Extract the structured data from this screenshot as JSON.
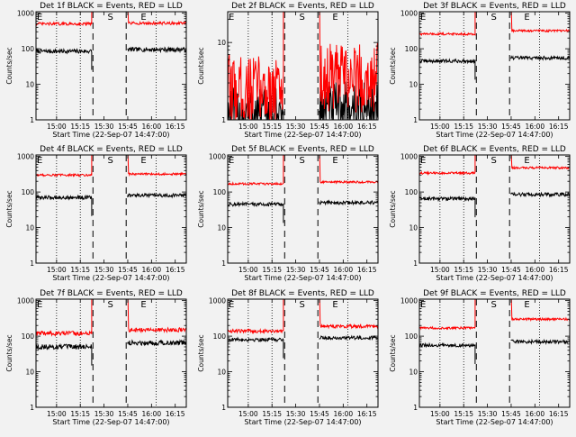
{
  "colors": {
    "background": "#f2f2f2",
    "events": "#000000",
    "lld": "#ff0000",
    "axes": "#000000"
  },
  "chart_data": [
    {
      "type": "line",
      "title": "Det 1f BLACK = Events, RED = LLD",
      "xlabel": "Start Time (22-Sep-07 14:47:00)",
      "ylabel": "Counts/sec",
      "x_ticks": [
        "15:00",
        "15:15",
        "15:30",
        "15:45",
        "16:00",
        "16:15"
      ],
      "y_ticks": [
        "1",
        "10",
        "100",
        "1000"
      ],
      "ylim": [
        1,
        1100
      ],
      "y_scale": "log",
      "xlim_minutes": [
        0,
        95
      ],
      "saa_start_marker": "S",
      "saa_end_marker": "E",
      "start_marker_min": 47,
      "end_marker_min": 68,
      "dashed_lines_min": [
        36,
        57
      ],
      "dotted_lines_min": [
        13,
        28,
        76
      ],
      "series": [
        {
          "name": "Events",
          "color": "black",
          "level_before": 85,
          "level_after": 95,
          "noise": 0.06
        },
        {
          "name": "LLD",
          "color": "red",
          "level_before": 500,
          "level_after": 520,
          "noise": 0.04
        }
      ]
    },
    {
      "type": "line",
      "title": "Det 2f BLACK = Events, RED = LLD",
      "xlabel": "Start Time (22-Sep-07 14:47:00)",
      "ylabel": "Counts/sec",
      "x_ticks": [
        "15:00",
        "15:15",
        "15:30",
        "15:45",
        "16:00",
        "16:15"
      ],
      "y_ticks": [
        "1",
        "10"
      ],
      "ylim": [
        1,
        25
      ],
      "y_scale": "log",
      "xlim_minutes": [
        0,
        95
      ],
      "saa_start_marker": "S",
      "saa_end_marker": "E",
      "start_marker_min": 47,
      "end_marker_min": 68,
      "dashed_lines_min": [
        36,
        57
      ],
      "dotted_lines_min": [
        13,
        28,
        76
      ],
      "series": [
        {
          "name": "Events",
          "color": "black",
          "level_before": 1.2,
          "level_after": 1.4,
          "noise": 0.35
        },
        {
          "name": "LLD",
          "color": "red",
          "level_before": 2.5,
          "level_after": 3.5,
          "noise": 0.45
        }
      ]
    },
    {
      "type": "line",
      "title": "Det 3f BLACK = Events, RED = LLD",
      "xlabel": "Start Time (22-Sep-07 14:47:00)",
      "ylabel": "Counts/sec",
      "x_ticks": [
        "15:00",
        "15:15",
        "15:30",
        "15:45",
        "16:00",
        "16:15"
      ],
      "y_ticks": [
        "1",
        "10",
        "100",
        "1000"
      ],
      "ylim": [
        1,
        1100
      ],
      "y_scale": "log",
      "xlim_minutes": [
        0,
        95
      ],
      "saa_start_marker": "S",
      "saa_end_marker": "E",
      "start_marker_min": 47,
      "end_marker_min": 68,
      "dashed_lines_min": [
        36,
        57
      ],
      "dotted_lines_min": [
        13,
        28,
        76
      ],
      "series": [
        {
          "name": "Events",
          "color": "black",
          "level_before": 45,
          "level_after": 55,
          "noise": 0.05
        },
        {
          "name": "LLD",
          "color": "red",
          "level_before": 260,
          "level_after": 320,
          "noise": 0.03
        }
      ]
    },
    {
      "type": "line",
      "title": "Det 4f BLACK = Events, RED = LLD",
      "xlabel": "Start Time (22-Sep-07 14:47:00)",
      "ylabel": "Counts/sec",
      "x_ticks": [
        "15:00",
        "15:15",
        "15:30",
        "15:45",
        "16:00",
        "16:15"
      ],
      "y_ticks": [
        "1",
        "10",
        "100",
        "1000"
      ],
      "ylim": [
        1,
        1100
      ],
      "y_scale": "log",
      "xlim_minutes": [
        0,
        95
      ],
      "saa_start_marker": "S",
      "saa_end_marker": "E",
      "start_marker_min": 47,
      "end_marker_min": 68,
      "dashed_lines_min": [
        36,
        57
      ],
      "dotted_lines_min": [
        13,
        28,
        76
      ],
      "series": [
        {
          "name": "Events",
          "color": "black",
          "level_before": 70,
          "level_after": 80,
          "noise": 0.05
        },
        {
          "name": "LLD",
          "color": "red",
          "level_before": 300,
          "level_after": 320,
          "noise": 0.03
        }
      ]
    },
    {
      "type": "line",
      "title": "Det 5f BLACK = Events, RED = LLD",
      "xlabel": "Start Time (22-Sep-07 14:47:00)",
      "ylabel": "Counts/sec",
      "x_ticks": [
        "15:00",
        "15:15",
        "15:30",
        "15:45",
        "16:00",
        "16:15"
      ],
      "y_ticks": [
        "1",
        "10",
        "100",
        "1000"
      ],
      "ylim": [
        1,
        1100
      ],
      "y_scale": "log",
      "xlim_minutes": [
        0,
        95
      ],
      "saa_start_marker": "S",
      "saa_end_marker": "E",
      "start_marker_min": 47,
      "end_marker_min": 68,
      "dashed_lines_min": [
        36,
        57
      ],
      "dotted_lines_min": [
        13,
        28,
        76
      ],
      "series": [
        {
          "name": "Events",
          "color": "black",
          "level_before": 45,
          "level_after": 50,
          "noise": 0.05
        },
        {
          "name": "LLD",
          "color": "red",
          "level_before": 170,
          "level_after": 190,
          "noise": 0.03
        }
      ]
    },
    {
      "type": "line",
      "title": "Det 6f BLACK = Events, RED = LLD",
      "xlabel": "Start Time (22-Sep-07 14:47:00)",
      "ylabel": "Counts/sec",
      "x_ticks": [
        "15:00",
        "15:15",
        "15:30",
        "15:45",
        "16:00",
        "16:15"
      ],
      "y_ticks": [
        "1",
        "10",
        "100",
        "1000"
      ],
      "ylim": [
        1,
        1100
      ],
      "y_scale": "log",
      "xlim_minutes": [
        0,
        95
      ],
      "saa_start_marker": "S",
      "saa_end_marker": "E",
      "start_marker_min": 47,
      "end_marker_min": 68,
      "dashed_lines_min": [
        36,
        57
      ],
      "dotted_lines_min": [
        13,
        28,
        76
      ],
      "series": [
        {
          "name": "Events",
          "color": "black",
          "level_before": 65,
          "level_after": 85,
          "noise": 0.05
        },
        {
          "name": "LLD",
          "color": "red",
          "level_before": 340,
          "level_after": 480,
          "noise": 0.03
        }
      ]
    },
    {
      "type": "line",
      "title": "Det 7f BLACK = Events, RED = LLD",
      "xlabel": "Start Time (22-Sep-07 14:47:00)",
      "ylabel": "Counts/sec",
      "x_ticks": [
        "15:00",
        "15:15",
        "15:30",
        "15:45",
        "16:00",
        "16:15"
      ],
      "y_ticks": [
        "1",
        "10",
        "100",
        "1000"
      ],
      "ylim": [
        1,
        1100
      ],
      "y_scale": "log",
      "xlim_minutes": [
        0,
        95
      ],
      "saa_start_marker": "S",
      "saa_end_marker": "E",
      "start_marker_min": 47,
      "end_marker_min": 68,
      "dashed_lines_min": [
        36,
        57
      ],
      "dotted_lines_min": [
        13,
        28,
        76
      ],
      "series": [
        {
          "name": "Events",
          "color": "black",
          "level_before": 50,
          "level_after": 65,
          "noise": 0.07
        },
        {
          "name": "LLD",
          "color": "red",
          "level_before": 120,
          "level_after": 150,
          "noise": 0.06
        }
      ]
    },
    {
      "type": "line",
      "title": "Det 8f BLACK = Events, RED = LLD",
      "xlabel": "Start Time (22-Sep-07 14:47:00)",
      "ylabel": "Counts/sec",
      "x_ticks": [
        "15:00",
        "15:15",
        "15:30",
        "15:45",
        "16:00",
        "16:15"
      ],
      "y_ticks": [
        "1",
        "10",
        "100",
        "1000"
      ],
      "ylim": [
        1,
        1100
      ],
      "y_scale": "log",
      "xlim_minutes": [
        0,
        95
      ],
      "saa_start_marker": "S",
      "saa_end_marker": "E",
      "start_marker_min": 47,
      "end_marker_min": 68,
      "dashed_lines_min": [
        36,
        57
      ],
      "dotted_lines_min": [
        13,
        28,
        76
      ],
      "series": [
        {
          "name": "Events",
          "color": "black",
          "level_before": 80,
          "level_after": 90,
          "noise": 0.05
        },
        {
          "name": "LLD",
          "color": "red",
          "level_before": 140,
          "level_after": 190,
          "noise": 0.05
        }
      ]
    },
    {
      "type": "line",
      "title": "Det 9f BLACK = Events, RED = LLD",
      "xlabel": "Start Time (22-Sep-07 14:47:00)",
      "ylabel": "Counts/sec",
      "x_ticks": [
        "15:00",
        "15:15",
        "15:30",
        "15:45",
        "16:00",
        "16:15"
      ],
      "y_ticks": [
        "1",
        "10",
        "100",
        "1000"
      ],
      "ylim": [
        1,
        1100
      ],
      "y_scale": "log",
      "xlim_minutes": [
        0,
        95
      ],
      "saa_start_marker": "S",
      "saa_end_marker": "E",
      "start_marker_min": 47,
      "end_marker_min": 68,
      "dashed_lines_min": [
        36,
        57
      ],
      "dotted_lines_min": [
        13,
        28,
        76
      ],
      "series": [
        {
          "name": "Events",
          "color": "black",
          "level_before": 55,
          "level_after": 70,
          "noise": 0.05
        },
        {
          "name": "LLD",
          "color": "red",
          "level_before": 170,
          "level_after": 300,
          "noise": 0.03
        }
      ]
    }
  ]
}
